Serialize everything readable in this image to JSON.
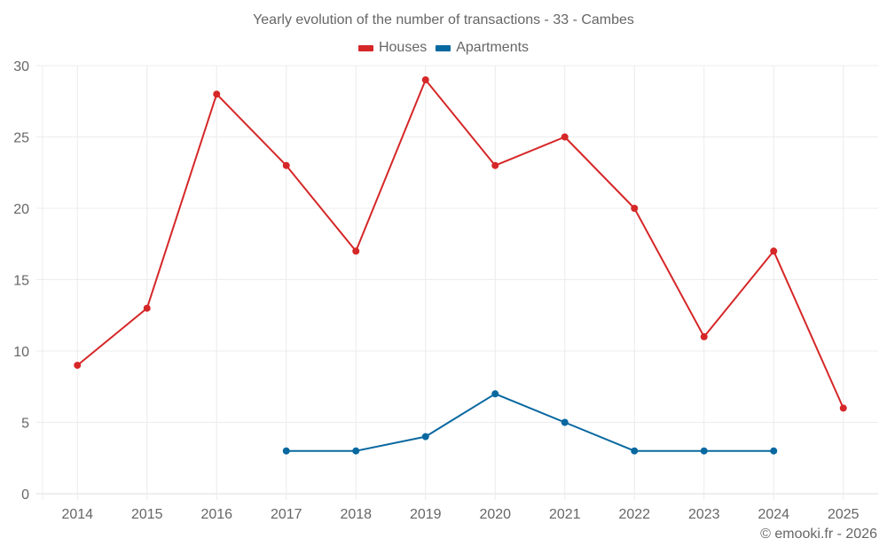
{
  "chart_data": {
    "type": "line",
    "title": "Yearly evolution of the number of transactions - 33 - Cambes",
    "xlabel": "",
    "ylabel": "",
    "x": [
      "2014",
      "2015",
      "2016",
      "2017",
      "2018",
      "2019",
      "2020",
      "2021",
      "2022",
      "2023",
      "2024",
      "2025"
    ],
    "ylim": [
      0,
      30
    ],
    "yticks": [
      0,
      5,
      10,
      15,
      20,
      25,
      30
    ],
    "grid": true,
    "legend_position": "top-center",
    "series": [
      {
        "name": "Houses",
        "color": "#d62728",
        "values": [
          9,
          13,
          28,
          23,
          17,
          29,
          23,
          25,
          20,
          11,
          17,
          6
        ]
      },
      {
        "name": "Apartments",
        "color": "#0868a0",
        "values": [
          null,
          null,
          null,
          3,
          3,
          4,
          7,
          5,
          3,
          3,
          3,
          null
        ]
      }
    ]
  },
  "credit": "© emooki.fr - 2026"
}
